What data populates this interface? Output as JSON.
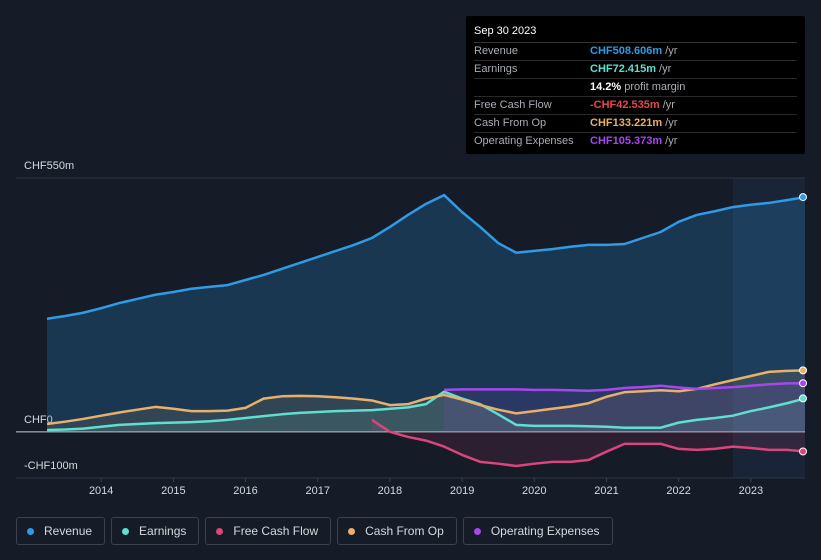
{
  "chart_data": {
    "type": "line",
    "x": [
      2013.25,
      2013.5,
      2013.75,
      2014,
      2014.25,
      2014.5,
      2014.75,
      2015,
      2015.25,
      2015.5,
      2015.75,
      2016,
      2016.25,
      2016.5,
      2016.75,
      2017,
      2017.25,
      2017.5,
      2017.75,
      2018,
      2018.25,
      2018.5,
      2018.75,
      2019,
      2019.25,
      2019.5,
      2019.75,
      2020,
      2020.25,
      2020.5,
      2020.75,
      2021,
      2021.25,
      2021.5,
      2021.75,
      2022,
      2022.25,
      2022.5,
      2022.75,
      2023,
      2023.25,
      2023.5,
      2023.75
    ],
    "series": [
      {
        "name": "Revenue",
        "color": "#2f9be6",
        "values": [
          245,
          251,
          258,
          268,
          279,
          288,
          297,
          303,
          310,
          314,
          318,
          329,
          340,
          353,
          366,
          379,
          392,
          405,
          420,
          444,
          470,
          494,
          513,
          476,
          444,
          409,
          388,
          392,
          396,
          401,
          405,
          405,
          407,
          420,
          433,
          455,
          470,
          478,
          487,
          492,
          496,
          502,
          508.606
        ]
      },
      {
        "name": "Earnings",
        "color": "#5fdfcf",
        "values": [
          4,
          5,
          7,
          11,
          15,
          17,
          19,
          20,
          21,
          23,
          26,
          30,
          34,
          38,
          41,
          43,
          45,
          46,
          47,
          50,
          53,
          60,
          87,
          72,
          60,
          38,
          15,
          13,
          13,
          13,
          12,
          11,
          9,
          9,
          9,
          20,
          26,
          30,
          35,
          45,
          53,
          62,
          72.415
        ]
      },
      {
        "name": "Free Cash Flow",
        "color": "#d9457c",
        "values": [
          null,
          null,
          null,
          null,
          null,
          null,
          null,
          null,
          null,
          null,
          null,
          null,
          null,
          null,
          null,
          null,
          null,
          null,
          26,
          0,
          -11,
          -19,
          -32,
          -50,
          -65,
          -69,
          -74,
          -69,
          -65,
          -65,
          -61,
          -43,
          -26,
          -26,
          -26,
          -37,
          -39,
          -37,
          -32,
          -35,
          -39,
          -39,
          -42.535
        ]
      },
      {
        "name": "Cash From Op",
        "color": "#e9b06c",
        "values": [
          17,
          22,
          28,
          35,
          42,
          48,
          54,
          50,
          45,
          45,
          46,
          52,
          72,
          77,
          78,
          77,
          75,
          72,
          68,
          58,
          60,
          72,
          80,
          70,
          58,
          48,
          40,
          45,
          50,
          55,
          62,
          76,
          86,
          88,
          90,
          88,
          93,
          103,
          112,
          121,
          130,
          132,
          133.221
        ]
      },
      {
        "name": "Operating Expenses",
        "color": "#a647ee",
        "values": [
          null,
          null,
          null,
          null,
          null,
          null,
          null,
          null,
          null,
          null,
          null,
          null,
          null,
          null,
          null,
          null,
          null,
          null,
          null,
          null,
          null,
          null,
          91,
          92,
          92,
          92,
          92,
          91,
          91,
          90,
          89,
          91,
          95,
          97,
          100,
          96,
          93,
          95,
          97,
          100,
          103,
          105,
          105.373
        ]
      }
    ],
    "xlim": [
      2012.82,
      2023.75
    ],
    "xticks": [
      2014,
      2015,
      2016,
      2017,
      2018,
      2019,
      2020,
      2021,
      2022,
      2023
    ],
    "ylim": [
      -100,
      550
    ],
    "yticks": [
      {
        "value": 550,
        "label": "CHF550m"
      },
      {
        "value": 0,
        "label": "CHF0"
      },
      {
        "value": -100,
        "label": "-CHF100m"
      }
    ],
    "grid": true
  },
  "tooltip": {
    "date": "Sep 30 2023",
    "rows": [
      {
        "label": "Revenue",
        "value": "CHF508.606m",
        "unit": "/yr",
        "color": "#2f9be6"
      },
      {
        "label": "Earnings",
        "value": "CHF72.415m",
        "unit": "/yr",
        "color": "#5fdfcf"
      },
      {
        "value": "14.2%",
        "unit": "profit margin",
        "color": "#ffffff"
      },
      {
        "label": "Free Cash Flow",
        "value": "-CHF42.535m",
        "unit": "/yr",
        "color": "#e5484d"
      },
      {
        "label": "Cash From Op",
        "value": "CHF133.221m",
        "unit": "/yr",
        "color": "#e9b06c"
      },
      {
        "label": "Operating Expenses",
        "value": "CHF105.373m",
        "unit": "/yr",
        "color": "#a647ee"
      }
    ]
  }
}
